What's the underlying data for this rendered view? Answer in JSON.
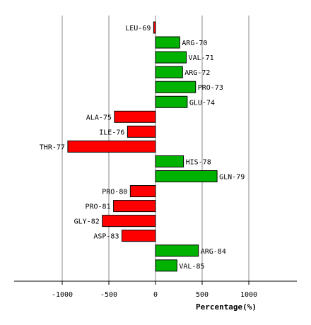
{
  "chart_data": {
    "type": "bar",
    "orientation": "horizontal",
    "title": "",
    "xlabel": "Percentage(%)",
    "ylabel": "",
    "xlim": [
      -1500,
      1500
    ],
    "xticks": [
      -1000,
      -500,
      0,
      500,
      1000
    ],
    "xtick_labels": [
      "-1000",
      "-500",
      "0",
      "500",
      "1000"
    ],
    "grid": "vertical",
    "colors": {
      "positive": "#00b200",
      "negative": "#ff0000",
      "gridline": "#888888"
    },
    "categories": [
      "LEU-69",
      "ARG-70",
      "VAL-71",
      "ARG-72",
      "PRO-73",
      "GLU-74",
      "ALA-75",
      "ILE-76",
      "THR-77",
      "HIS-78",
      "GLN-79",
      "PRO-80",
      "PRO-81",
      "GLY-82",
      "ASP-83",
      "ARG-84",
      "VAL-85"
    ],
    "values": [
      -20,
      260,
      330,
      290,
      430,
      340,
      -440,
      -300,
      -940,
      300,
      660,
      -270,
      -450,
      -570,
      -360,
      460,
      230
    ]
  }
}
